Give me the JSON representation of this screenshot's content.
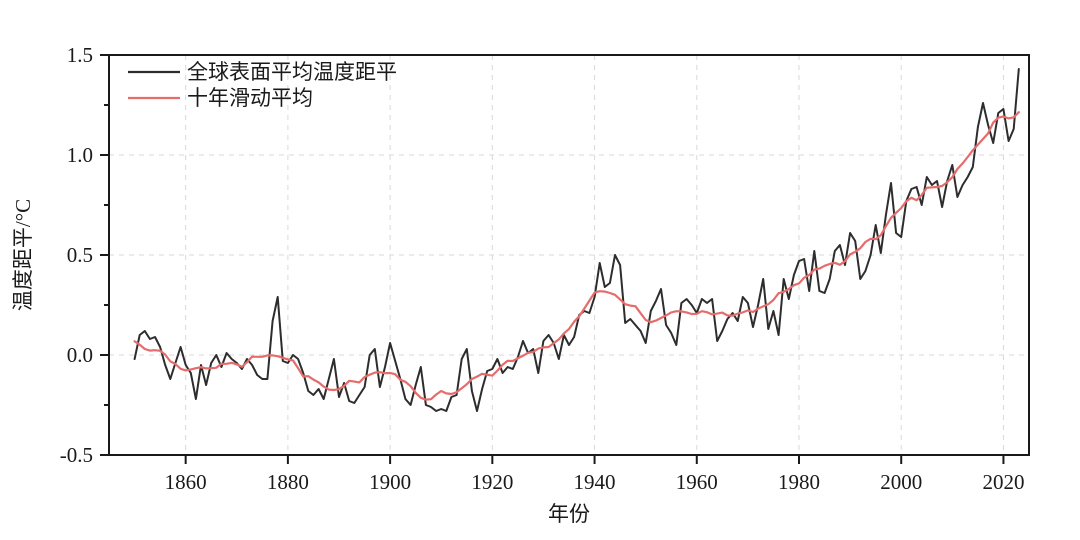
{
  "figure": {
    "background_color": "#ffffff",
    "axis_color": "#1a1a1a",
    "grid_color": "#d9d9d9",
    "tick_label_color": "#1a1a1a"
  },
  "legend": {
    "position": "top-left-inside",
    "items": [
      {
        "label": "全球表面平均温度距平",
        "color": "#2d2d2d"
      },
      {
        "label": "十年滑动平均",
        "color": "#e66c6c"
      }
    ]
  },
  "chart_data": {
    "type": "line",
    "title": "",
    "xlabel": "年份",
    "ylabel": "温度距平/°C",
    "xlim": [
      1845,
      2025
    ],
    "ylim": [
      -0.5,
      1.5
    ],
    "grid": "dashed vertical lines at every 20-year tick; dashed horizontal lines at 0.0, 0.5, 1.0",
    "x_tick_values": [
      1860,
      1880,
      1900,
      1920,
      1940,
      1960,
      1980,
      2000,
      2020
    ],
    "x_tick_labels": [
      "1860",
      "1880",
      "1900",
      "1920",
      "1940",
      "1960",
      "1980",
      "2000",
      "2020"
    ],
    "y_tick_values": [
      1.5,
      1.0,
      0.5,
      0.0,
      -0.5
    ],
    "y_tick_labels": [
      "1.5",
      "1.0",
      "0.5",
      "0.0",
      "-0.5"
    ],
    "y_minor_tick_values": [
      1.25,
      0.75,
      0.25,
      -0.25
    ],
    "x": {
      "start_year": 1850,
      "end_year": 2023,
      "step": 1
    },
    "series": [
      {
        "name": "全球表面平均温度距平",
        "color": "#2d2d2d",
        "values": [
          -0.02,
          0.1,
          0.12,
          0.08,
          0.09,
          0.04,
          -0.05,
          -0.12,
          -0.04,
          0.04,
          -0.05,
          -0.09,
          -0.22,
          -0.05,
          -0.15,
          -0.04,
          0.0,
          -0.06,
          0.01,
          -0.02,
          -0.04,
          -0.07,
          -0.02,
          -0.05,
          -0.1,
          -0.12,
          -0.12,
          0.17,
          0.29,
          -0.03,
          -0.04,
          0.0,
          -0.02,
          -0.09,
          -0.18,
          -0.2,
          -0.17,
          -0.22,
          -0.12,
          -0.02,
          -0.21,
          -0.14,
          -0.23,
          -0.24,
          -0.2,
          -0.16,
          0.0,
          0.03,
          -0.16,
          -0.06,
          0.06,
          -0.03,
          -0.12,
          -0.22,
          -0.25,
          -0.15,
          -0.06,
          -0.25,
          -0.26,
          -0.28,
          -0.27,
          -0.28,
          -0.21,
          -0.2,
          -0.02,
          0.03,
          -0.18,
          -0.28,
          -0.17,
          -0.08,
          -0.07,
          -0.02,
          -0.09,
          -0.06,
          -0.07,
          -0.01,
          0.07,
          0.01,
          0.03,
          -0.09,
          0.07,
          0.1,
          0.06,
          -0.02,
          0.1,
          0.05,
          0.09,
          0.2,
          0.22,
          0.21,
          0.29,
          0.46,
          0.34,
          0.36,
          0.5,
          0.45,
          0.16,
          0.18,
          0.15,
          0.12,
          0.06,
          0.22,
          0.27,
          0.33,
          0.15,
          0.11,
          0.05,
          0.26,
          0.28,
          0.25,
          0.21,
          0.28,
          0.26,
          0.28,
          0.07,
          0.12,
          0.18,
          0.21,
          0.17,
          0.29,
          0.26,
          0.14,
          0.25,
          0.38,
          0.13,
          0.22,
          0.1,
          0.38,
          0.28,
          0.4,
          0.47,
          0.48,
          0.32,
          0.52,
          0.32,
          0.31,
          0.38,
          0.52,
          0.55,
          0.45,
          0.61,
          0.57,
          0.38,
          0.42,
          0.5,
          0.65,
          0.51,
          0.7,
          0.86,
          0.61,
          0.59,
          0.77,
          0.83,
          0.84,
          0.75,
          0.89,
          0.85,
          0.87,
          0.74,
          0.87,
          0.95,
          0.79,
          0.85,
          0.89,
          0.94,
          1.14,
          1.26,
          1.15,
          1.06,
          1.21,
          1.23,
          1.07,
          1.13,
          1.43
        ]
      },
      {
        "name": "十年滑动平均",
        "color": "#e66c6c",
        "derived": "centered 10-year moving average of the annual series (window clamped at the ends)"
      }
    ]
  }
}
